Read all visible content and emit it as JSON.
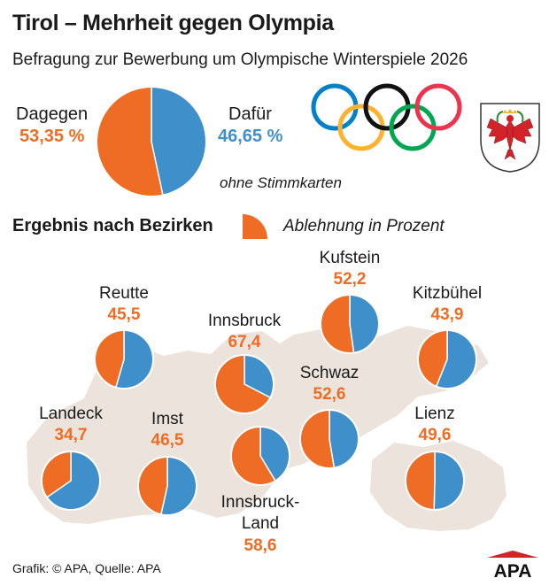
{
  "title": "Tirol – Mehrheit gegen Olympia",
  "subtitle": "Befragung zur Bewerbung um Olympische Winterspiele 2026",
  "colors": {
    "against": "#ee6c24",
    "for": "#3f8fcb",
    "map": "#ece4dc",
    "olympic_blue": "#0081c8",
    "olympic_black": "#111111",
    "olympic_red": "#ee334e",
    "olympic_yellow": "#fcb131",
    "olympic_green": "#00a651"
  },
  "overall": {
    "against_label": "Dagegen",
    "against_value": "53,35 %",
    "for_label": "Dafür",
    "for_value": "46,65 %",
    "note": "ohne Stimmkarten"
  },
  "section_title": "Ergebnis nach Bezirken",
  "legend_label": "Ablehnung in Prozent",
  "icons": [
    "olympic-rings-icon",
    "tirol-coat-of-arms-icon",
    "apa-logo-icon"
  ],
  "footer": "Grafik: © APA, Quelle: APA",
  "logo_text": "APA",
  "chart_data": [
    {
      "type": "pie",
      "categories": [
        "Dagegen",
        "Dafür"
      ],
      "values": [
        53.35,
        46.65
      ],
      "unit": "%"
    },
    {
      "type": "pie",
      "series": [
        {
          "name": "Reutte",
          "label": "Reutte",
          "value": 45.5,
          "display": "45,5"
        },
        {
          "name": "Innsbruck",
          "label": "Innsbruck",
          "value": 67.4,
          "display": "67,4"
        },
        {
          "name": "Kufstein",
          "label": "Kufstein",
          "value": 52.2,
          "display": "52,2"
        },
        {
          "name": "Kitzbühel",
          "label": "Kitzbühel",
          "value": 43.9,
          "display": "43,9"
        },
        {
          "name": "Landeck",
          "label": "Landeck",
          "value": 34.7,
          "display": "34,7"
        },
        {
          "name": "Imst",
          "label": "Imst",
          "value": 46.5,
          "display": "46,5"
        },
        {
          "name": "Schwaz",
          "label": "Schwaz",
          "value": 52.6,
          "display": "52,6"
        },
        {
          "name": "Lienz",
          "label": "Lienz",
          "value": 49.6,
          "display": "49,6"
        },
        {
          "name": "Innsbruck-Land",
          "label": "Innsbruck-\nLand",
          "value": 58.6,
          "display": "58,6"
        }
      ],
      "unit": "Ablehnung in Prozent"
    }
  ]
}
